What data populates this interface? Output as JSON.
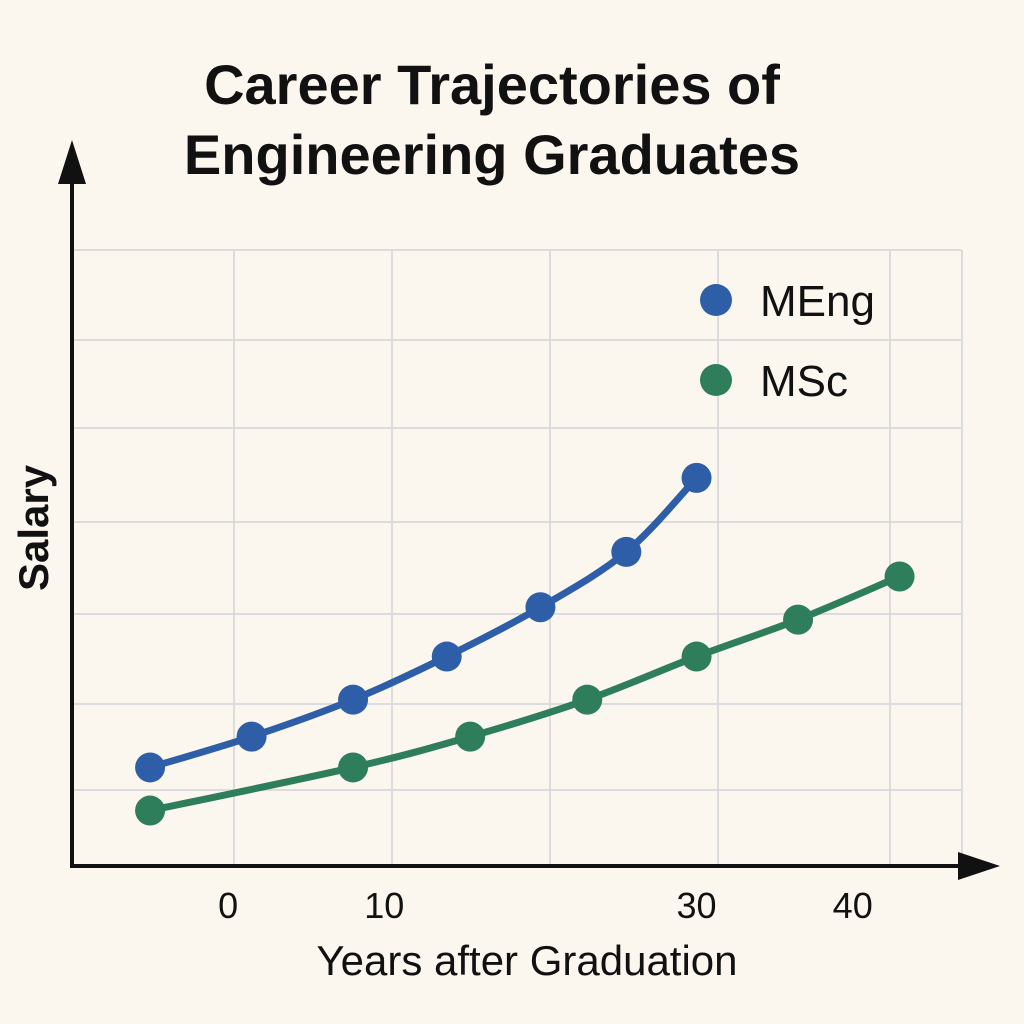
{
  "chart_data": {
    "type": "line",
    "title_lines": [
      "Career Trajectories of",
      "Engineering Graduates"
    ],
    "xlabel": "Years after Graduation",
    "ylabel": "Salary",
    "x_ticks": [
      0,
      10,
      30,
      40
    ],
    "xlim": [
      -10,
      47
    ],
    "ylim": [
      0,
      10
    ],
    "grid": true,
    "legend_position": "top-right",
    "series": [
      {
        "name": "MEng",
        "color": "#2f5ea8",
        "x": [
          -5,
          1.5,
          8,
          14,
          20,
          25.5,
          30
        ],
        "y": [
          1.6,
          2.1,
          2.7,
          3.4,
          4.2,
          5.1,
          6.3
        ]
      },
      {
        "name": "MSc",
        "color": "#2e7d5b",
        "x": [
          -5,
          8,
          15.5,
          23,
          30,
          36.5,
          43
        ],
        "y": [
          0.9,
          1.6,
          2.1,
          2.7,
          3.4,
          4.0,
          4.7
        ]
      }
    ]
  }
}
